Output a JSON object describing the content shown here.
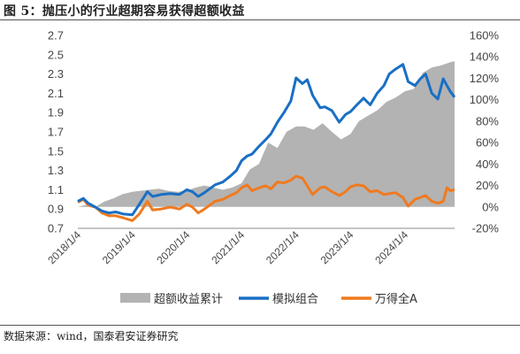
{
  "figure": {
    "title": "图 5：抛压小的行业超期容易获得超额收益",
    "source": "数据来源：wind，国泰君安证券研究"
  },
  "colors": {
    "excess": "#b3b3b3",
    "index": "#1a6fc4",
    "wind_a": "#f07a1e"
  },
  "chart_data": {
    "type": "line",
    "x_range": [
      "2018-01-04",
      "2024-11-30"
    ],
    "y_left": {
      "ticks": [
        "2.7",
        "2.5",
        "2.3",
        "2.1",
        "1.9",
        "1.7",
        "1.5",
        "1.3",
        "1.1",
        "0.9",
        "0.7"
      ],
      "range": [
        0.7,
        2.7
      ]
    },
    "y_right": {
      "ticks": [
        "160%",
        "140%",
        "120%",
        "100%",
        "80%",
        "60%",
        "40%",
        "20%",
        "0%",
        "-20%"
      ],
      "range": [
        -0.2,
        1.6
      ]
    },
    "x_ticks": [
      "2018/1/4",
      "2019/1/4",
      "2020/1/4",
      "2021/1/4",
      "2022/1/4",
      "2023/1/4",
      "2024/1/4"
    ],
    "x_tick_dates": [
      "2018-01-04",
      "2019-01-04",
      "2020-01-04",
      "2021-01-04",
      "2022-01-04",
      "2023-01-04",
      "2024-01-04"
    ],
    "series": [
      {
        "name": "超额收益累计",
        "kind": "area",
        "axis": "right",
        "points": [
          [
            "2018-01-04",
            0.0
          ],
          [
            "2018-03-01",
            0.02
          ],
          [
            "2018-05-01",
            0.0
          ],
          [
            "2018-07-01",
            0.05
          ],
          [
            "2018-09-01",
            0.08
          ],
          [
            "2018-11-01",
            0.12
          ],
          [
            "2019-01-04",
            0.14
          ],
          [
            "2019-03-01",
            0.15
          ],
          [
            "2019-05-01",
            0.16
          ],
          [
            "2019-07-01",
            0.17
          ],
          [
            "2019-09-01",
            0.15
          ],
          [
            "2019-11-01",
            0.14
          ],
          [
            "2020-01-04",
            0.15
          ],
          [
            "2020-03-01",
            0.18
          ],
          [
            "2020-05-01",
            0.2
          ],
          [
            "2020-07-01",
            0.18
          ],
          [
            "2020-09-01",
            0.16
          ],
          [
            "2020-11-01",
            0.18
          ],
          [
            "2021-01-04",
            0.22
          ],
          [
            "2021-03-01",
            0.35
          ],
          [
            "2021-05-01",
            0.4
          ],
          [
            "2021-07-01",
            0.6
          ],
          [
            "2021-09-01",
            0.55
          ],
          [
            "2021-11-01",
            0.7
          ],
          [
            "2022-01-04",
            0.75
          ],
          [
            "2022-03-01",
            0.75
          ],
          [
            "2022-05-01",
            0.72
          ],
          [
            "2022-07-01",
            0.78
          ],
          [
            "2022-09-01",
            0.7
          ],
          [
            "2022-11-01",
            0.63
          ],
          [
            "2023-01-04",
            0.68
          ],
          [
            "2023-03-01",
            0.8
          ],
          [
            "2023-05-01",
            0.85
          ],
          [
            "2023-07-01",
            0.9
          ],
          [
            "2023-09-01",
            0.98
          ],
          [
            "2023-11-01",
            1.02
          ],
          [
            "2024-01-04",
            1.08
          ],
          [
            "2024-03-01",
            1.1
          ],
          [
            "2024-05-01",
            1.25
          ],
          [
            "2024-07-01",
            1.3
          ],
          [
            "2024-09-01",
            1.32
          ],
          [
            "2024-11-01",
            1.35
          ],
          [
            "2024-11-30",
            1.36
          ]
        ]
      },
      {
        "name": "模拟组合",
        "kind": "line",
        "axis": "left",
        "points": [
          [
            "2018-01-04",
            0.98
          ],
          [
            "2018-02-10",
            1.01
          ],
          [
            "2018-03-15",
            0.96
          ],
          [
            "2018-05-01",
            0.92
          ],
          [
            "2018-06-15",
            0.88
          ],
          [
            "2018-08-01",
            0.86
          ],
          [
            "2018-09-15",
            0.87
          ],
          [
            "2018-11-01",
            0.85
          ],
          [
            "2019-01-04",
            0.84
          ],
          [
            "2019-02-20",
            0.95
          ],
          [
            "2019-04-15",
            1.08
          ],
          [
            "2019-05-20",
            1.03
          ],
          [
            "2019-07-15",
            1.05
          ],
          [
            "2019-09-15",
            1.06
          ],
          [
            "2019-11-15",
            1.05
          ],
          [
            "2020-01-04",
            1.1
          ],
          [
            "2020-02-10",
            1.08
          ],
          [
            "2020-03-20",
            1.03
          ],
          [
            "2020-05-01",
            1.07
          ],
          [
            "2020-07-10",
            1.15
          ],
          [
            "2020-09-01",
            1.18
          ],
          [
            "2020-10-20",
            1.24
          ],
          [
            "2020-12-01",
            1.3
          ],
          [
            "2021-01-04",
            1.4
          ],
          [
            "2021-02-10",
            1.45
          ],
          [
            "2021-03-15",
            1.47
          ],
          [
            "2021-05-01",
            1.55
          ],
          [
            "2021-06-15",
            1.62
          ],
          [
            "2021-07-20",
            1.68
          ],
          [
            "2021-09-01",
            1.8
          ],
          [
            "2021-10-15",
            1.9
          ],
          [
            "2021-11-30",
            2.02
          ],
          [
            "2022-01-04",
            2.26
          ],
          [
            "2022-02-15",
            2.2
          ],
          [
            "2022-03-20",
            2.24
          ],
          [
            "2022-04-25",
            2.08
          ],
          [
            "2022-06-15",
            1.95
          ],
          [
            "2022-07-15",
            1.96
          ],
          [
            "2022-09-01",
            1.92
          ],
          [
            "2022-10-20",
            1.8
          ],
          [
            "2022-12-01",
            1.88
          ],
          [
            "2023-01-04",
            1.91
          ],
          [
            "2023-02-15",
            1.98
          ],
          [
            "2023-04-01",
            2.05
          ],
          [
            "2023-05-15",
            1.98
          ],
          [
            "2023-07-01",
            2.1
          ],
          [
            "2023-08-15",
            2.18
          ],
          [
            "2023-09-20",
            2.3
          ],
          [
            "2023-11-01",
            2.35
          ],
          [
            "2023-12-20",
            2.4
          ],
          [
            "2024-01-25",
            2.22
          ],
          [
            "2024-03-10",
            2.18
          ],
          [
            "2024-04-15",
            2.25
          ],
          [
            "2024-05-20",
            2.3
          ],
          [
            "2024-07-01",
            2.1
          ],
          [
            "2024-08-10",
            2.04
          ],
          [
            "2024-09-15",
            2.25
          ],
          [
            "2024-10-10",
            2.18
          ],
          [
            "2024-11-01",
            2.12
          ],
          [
            "2024-11-30",
            2.06
          ]
        ]
      },
      {
        "name": "万得全A",
        "kind": "line",
        "axis": "left",
        "points": [
          [
            "2018-01-04",
            0.97
          ],
          [
            "2018-02-10",
            1.0
          ],
          [
            "2018-03-15",
            0.94
          ],
          [
            "2018-05-01",
            0.92
          ],
          [
            "2018-06-15",
            0.86
          ],
          [
            "2018-08-01",
            0.83
          ],
          [
            "2018-09-15",
            0.83
          ],
          [
            "2018-11-01",
            0.81
          ],
          [
            "2019-01-04",
            0.78
          ],
          [
            "2019-02-20",
            0.85
          ],
          [
            "2019-04-15",
            0.98
          ],
          [
            "2019-05-20",
            0.89
          ],
          [
            "2019-07-15",
            0.9
          ],
          [
            "2019-09-15",
            0.92
          ],
          [
            "2019-11-15",
            0.9
          ],
          [
            "2020-01-04",
            0.95
          ],
          [
            "2020-02-10",
            0.92
          ],
          [
            "2020-03-20",
            0.86
          ],
          [
            "2020-05-01",
            0.9
          ],
          [
            "2020-07-10",
            0.98
          ],
          [
            "2020-09-01",
            1.0
          ],
          [
            "2020-10-20",
            1.04
          ],
          [
            "2020-12-01",
            1.07
          ],
          [
            "2021-01-04",
            1.12
          ],
          [
            "2021-02-10",
            1.15
          ],
          [
            "2021-03-15",
            1.09
          ],
          [
            "2021-05-01",
            1.12
          ],
          [
            "2021-06-15",
            1.14
          ],
          [
            "2021-07-20",
            1.11
          ],
          [
            "2021-09-01",
            1.18
          ],
          [
            "2021-10-15",
            1.17
          ],
          [
            "2021-11-30",
            1.2
          ],
          [
            "2022-01-04",
            1.24
          ],
          [
            "2022-02-15",
            1.22
          ],
          [
            "2022-03-20",
            1.14
          ],
          [
            "2022-04-25",
            1.05
          ],
          [
            "2022-06-15",
            1.12
          ],
          [
            "2022-07-15",
            1.13
          ],
          [
            "2022-09-01",
            1.08
          ],
          [
            "2022-10-20",
            1.04
          ],
          [
            "2022-12-01",
            1.08
          ],
          [
            "2023-01-04",
            1.13
          ],
          [
            "2023-02-15",
            1.15
          ],
          [
            "2023-04-01",
            1.14
          ],
          [
            "2023-05-15",
            1.08
          ],
          [
            "2023-07-01",
            1.09
          ],
          [
            "2023-08-15",
            1.05
          ],
          [
            "2023-09-20",
            1.06
          ],
          [
            "2023-11-01",
            1.07
          ],
          [
            "2023-12-20",
            1.02
          ],
          [
            "2024-01-25",
            0.93
          ],
          [
            "2024-03-10",
            1.0
          ],
          [
            "2024-04-15",
            1.02
          ],
          [
            "2024-05-20",
            1.04
          ],
          [
            "2024-07-01",
            0.98
          ],
          [
            "2024-08-10",
            0.96
          ],
          [
            "2024-09-15",
            0.98
          ],
          [
            "2024-10-10",
            1.12
          ],
          [
            "2024-11-01",
            1.09
          ],
          [
            "2024-11-30",
            1.1
          ]
        ]
      }
    ],
    "legend_position": "bottom",
    "grid": false
  }
}
